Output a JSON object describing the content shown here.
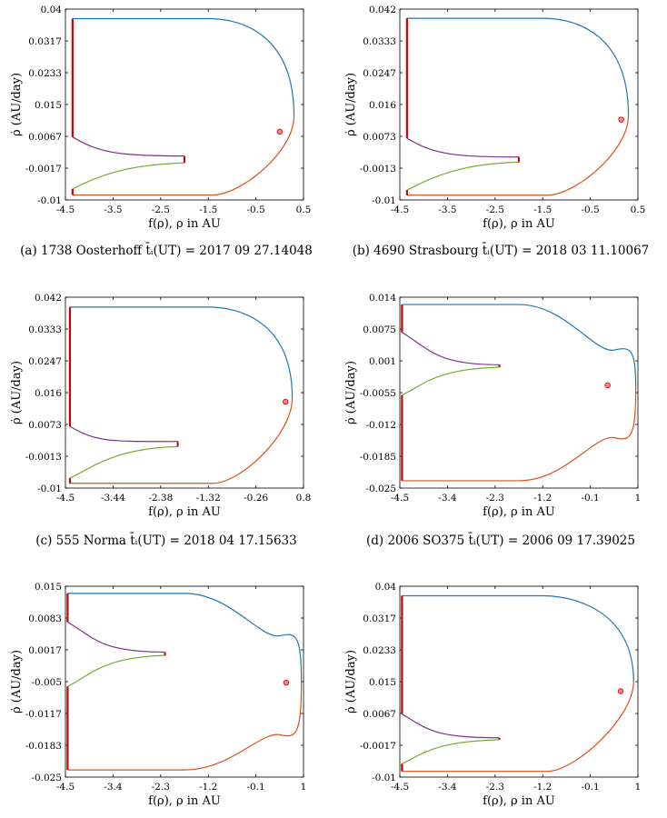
{
  "colors": {
    "blue": "#1f77b4",
    "orange": "#d95319",
    "green": "#77ac30",
    "purple": "#7e2f8e",
    "red": "#cc0000",
    "point_fill": "#ff8080"
  },
  "chart_data": [
    {
      "type": "line",
      "caption": "(a) 1738 Oosterhoff t̄ᵢ(UT) = 2017 09 27.14048",
      "xlabel": "f(ρ),  ρ in AU",
      "ylabel": "ρ̇ (AU/day)",
      "xlim": [
        -4.5,
        0.5
      ],
      "ylim": [
        -0.01,
        0.04
      ],
      "xticks": [
        "-4.5",
        "-3.5",
        "-2.5",
        "-1.5",
        "-0.5",
        "0.5"
      ],
      "yticks": [
        "-0.01",
        "-0.0017",
        "0.0067",
        "0.015",
        "0.0233",
        "0.0317",
        "0.04"
      ],
      "wall_x": -4.35,
      "top_y": 0.0375,
      "bot_y": -0.0087,
      "nose_x": 0.3,
      "nose_y": 0.012,
      "cusp": [
        -2.0,
        0.0015,
        -0.0003
      ],
      "purple_y": 0.0065,
      "green_y": -0.0071,
      "point": [
        0.0,
        0.0079
      ],
      "shape": "dome"
    },
    {
      "type": "line",
      "caption": "(b) 4690 Strasbourg t̄ᵢ(UT) = 2018 03 11.10067",
      "xlabel": "f(ρ),  ρ in AU",
      "ylabel": "ρ̇ (AU/day)",
      "xlim": [
        -4.5,
        0.5
      ],
      "ylim": [
        -0.01,
        0.042
      ],
      "xticks": [
        "-4.5",
        "-3.5",
        "-2.5",
        "-1.5",
        "-0.5",
        "0.5"
      ],
      "yticks": [
        "-0.01",
        "-0.0013",
        "0.0073",
        "0.016",
        "0.0247",
        "0.0333",
        "0.042"
      ],
      "wall_x": -4.35,
      "top_y": 0.0395,
      "bot_y": -0.0087,
      "nose_x": 0.3,
      "nose_y": 0.013,
      "cusp": [
        -2.0,
        0.0017,
        0.0003
      ],
      "purple_y": 0.0068,
      "green_y": -0.0073,
      "point": [
        0.15,
        0.0119
      ],
      "shape": "dome"
    },
    {
      "type": "line",
      "caption": "(c) 555 Norma t̄ᵢ(UT) = 2018 04 17.15633",
      "xlabel": "f(ρ),  ρ in AU",
      "ylabel": "ρ̇ (AU/day)",
      "xlim": [
        -4.5,
        0.8
      ],
      "ylim": [
        -0.01,
        0.042
      ],
      "xticks": [
        "-4.5",
        "-3.44",
        "-2.38",
        "-1.32",
        "-0.26",
        "0.8"
      ],
      "yticks": [
        "-0.01",
        "-0.0013",
        "0.0073",
        "0.016",
        "0.0247",
        "0.0333",
        "0.042"
      ],
      "wall_x": -4.4,
      "top_y": 0.0393,
      "bot_y": -0.0087,
      "nose_x": 0.55,
      "nose_y": 0.0145,
      "cusp": [
        -2.0,
        0.0027,
        0.0013
      ],
      "purple_y": 0.0068,
      "green_y": -0.0073,
      "point": [
        0.4,
        0.0135
      ],
      "shape": "dome"
    },
    {
      "type": "line",
      "caption": "(d) 2006 SO375 t̄ᵢ(UT) = 2006 09 17.39025",
      "xlabel": "f(ρ),  ρ in AU",
      "ylabel": "ρ̇ (AU/day)",
      "xlim": [
        -4.5,
        1
      ],
      "ylim": [
        -0.025,
        0.014
      ],
      "xticks": [
        "-4.5",
        "-3.4",
        "-2.3",
        "-1.2",
        "-0.1",
        "1"
      ],
      "yticks": [
        "-0.025",
        "-0.0185",
        "-0.012",
        "-0.0055",
        "0.001",
        "0.0075",
        "0.014"
      ],
      "wall_x": -4.45,
      "top_y": 0.0125,
      "bot_y": -0.0235,
      "nose_x": 0.95,
      "nose_y": -0.0045,
      "cusp": [
        -2.2,
        0.0002,
        -0.0003
      ],
      "purple_y": 0.0068,
      "green_y": -0.006,
      "point": [
        0.3,
        -0.004
      ],
      "shape": "bulb",
      "shoulder_top": [
        0.6,
        0.0028
      ],
      "shoulder_bot": [
        0.6,
        -0.0143
      ]
    },
    {
      "type": "line",
      "caption": "",
      "xlabel": "f(ρ),  ρ in AU",
      "ylabel": "ρ̇ (AU/day)",
      "xlim": [
        -4.5,
        1
      ],
      "ylim": [
        -0.025,
        0.015
      ],
      "xticks": [
        "-4.5",
        "-3.4",
        "-2.3",
        "-1.2",
        "-0.1",
        "1"
      ],
      "yticks": [
        "-0.025",
        "-0.0183",
        "-0.0117",
        "-0.005",
        "0.0017",
        "0.0083",
        "0.015"
      ],
      "wall_x": -4.45,
      "top_y": 0.0135,
      "bot_y": -0.0235,
      "nose_x": 0.95,
      "nose_y": -0.005,
      "cusp": [
        -2.2,
        0.0012,
        0.0005
      ],
      "purple_y": 0.0075,
      "green_y": -0.006,
      "point": [
        0.6,
        -0.0052
      ],
      "shape": "bulb",
      "shoulder_top": [
        0.6,
        0.0042
      ],
      "shoulder_bot": [
        0.6,
        -0.0157
      ]
    },
    {
      "type": "line",
      "caption": "",
      "xlabel": "f(ρ),  ρ in AU",
      "ylabel": "ρ̇ (AU/day)",
      "xlim": [
        -4.5,
        1
      ],
      "ylim": [
        -0.01,
        0.04
      ],
      "xticks": [
        "-4.5",
        "-3.4",
        "-2.3",
        "-1.2",
        "-0.1",
        "1"
      ],
      "yticks": [
        "-0.01",
        "-0.0017",
        "0.0067",
        "0.015",
        "0.0233",
        "0.0317",
        "0.04"
      ],
      "wall_x": -4.45,
      "top_y": 0.0375,
      "bot_y": -0.0085,
      "nose_x": 0.9,
      "nose_y": 0.015,
      "cusp": [
        -2.2,
        0.0003,
        -0.0002
      ],
      "purple_y": 0.0065,
      "green_y": -0.0065,
      "point": [
        0.6,
        0.0125
      ],
      "shape": "dome"
    }
  ]
}
